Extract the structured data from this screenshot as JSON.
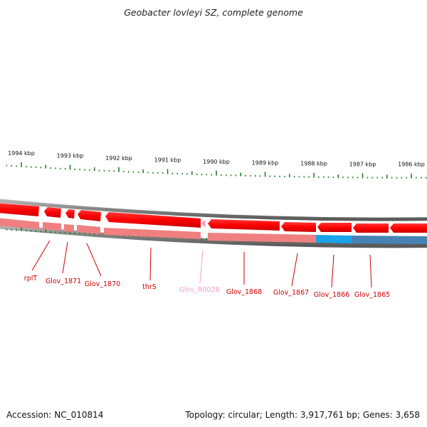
{
  "title": "Geobacter lovleyi SZ, complete genome",
  "footer": {
    "accession": "Accession: NC_010814",
    "summary": "Topology: circular; Length: 3,917,761 bp; Genes: 3,658"
  },
  "colors": {
    "forward_gene": "#ff0000",
    "reverse_gene_light": "#f08080",
    "rna_gene": "#ff99cc",
    "highlight_gene": "#1aa3e8",
    "highlight_gene_dark": "#4682b4",
    "backbone": "#808080",
    "ticks": "#1a7a1a",
    "label": "#cc0000"
  },
  "scale": {
    "unit": "kbp",
    "ticks": [
      {
        "kbp": 1994,
        "label": "1994 kbp"
      },
      {
        "kbp": 1993,
        "label": "1993 kbp"
      },
      {
        "kbp": 1992,
        "label": "1992 kbp"
      },
      {
        "kbp": 1991,
        "label": "1991 kbp"
      },
      {
        "kbp": 1990,
        "label": "1990 kbp"
      },
      {
        "kbp": 1989,
        "label": "1989 kbp"
      },
      {
        "kbp": 1988,
        "label": "1988 kbp"
      },
      {
        "kbp": 1987,
        "label": "1987 kbp"
      },
      {
        "kbp": 1986,
        "label": "1986 kbp"
      }
    ]
  },
  "genes": [
    {
      "label": "rplT",
      "color": "label"
    },
    {
      "label": "Glov_1871",
      "color": "label"
    },
    {
      "label": "Glov_1870",
      "color": "label"
    },
    {
      "label": "thrS",
      "color": "label"
    },
    {
      "label": "Glov_R0028",
      "color": "rna_gene"
    },
    {
      "label": "Glov_1868",
      "color": "label"
    },
    {
      "label": "Glov_1867",
      "color": "label"
    },
    {
      "label": "Glov_1866",
      "color": "label"
    },
    {
      "label": "Glov_1865",
      "color": "label"
    }
  ]
}
